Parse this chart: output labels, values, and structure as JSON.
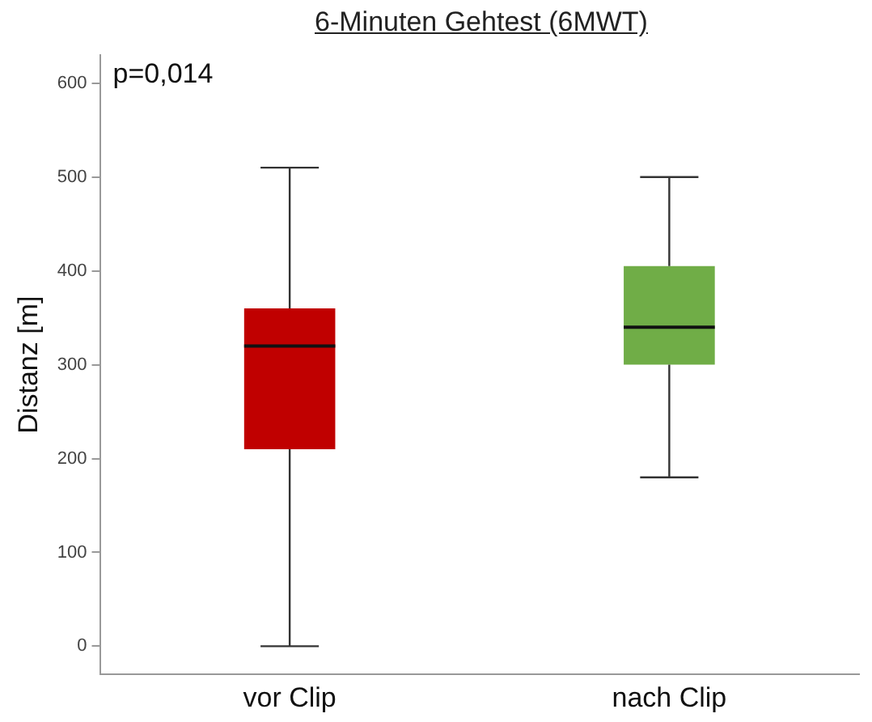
{
  "chart_data": {
    "type": "box",
    "title": "6-Minuten Gehtest (6MWT)",
    "ylabel": "Distanz [m]",
    "categories": [
      "vor Clip",
      "nach Clip"
    ],
    "boxes": [
      {
        "low": 0,
        "q1": 210,
        "median": 320,
        "q3": 360,
        "high": 510
      },
      {
        "low": 180,
        "q1": 300,
        "median": 340,
        "q3": 405,
        "high": 500
      }
    ],
    "colors": [
      "#c00000",
      "#70ad47"
    ],
    "ylim": [
      -30,
      630
    ],
    "yticks": [
      0,
      100,
      200,
      300,
      400,
      500,
      600
    ],
    "annotations": [
      "p=0,014"
    ]
  }
}
